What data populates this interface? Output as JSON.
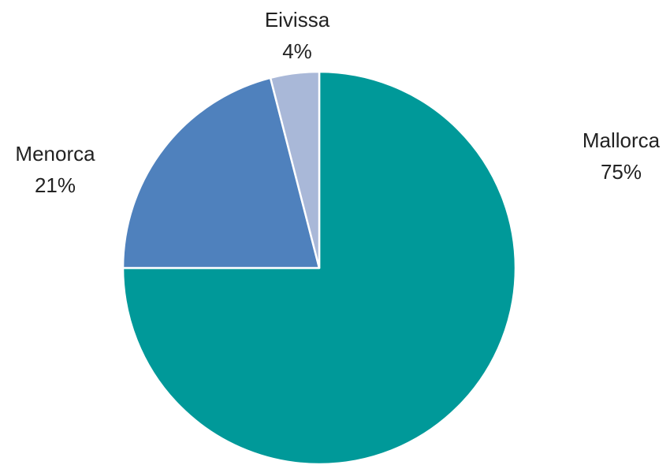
{
  "chart_data": {
    "type": "pie",
    "title": "",
    "slices": [
      {
        "label": "Mallorca",
        "value": 75,
        "display": "75%",
        "color": "#009999"
      },
      {
        "label": "Menorca",
        "value": 21,
        "display": "21%",
        "color": "#4F81BD"
      },
      {
        "label": "Eivissa",
        "value": 4,
        "display": "4%",
        "color": "#A9B8D8"
      }
    ],
    "start_angle_deg": 0,
    "direction": "clockwise",
    "legend": "none"
  }
}
